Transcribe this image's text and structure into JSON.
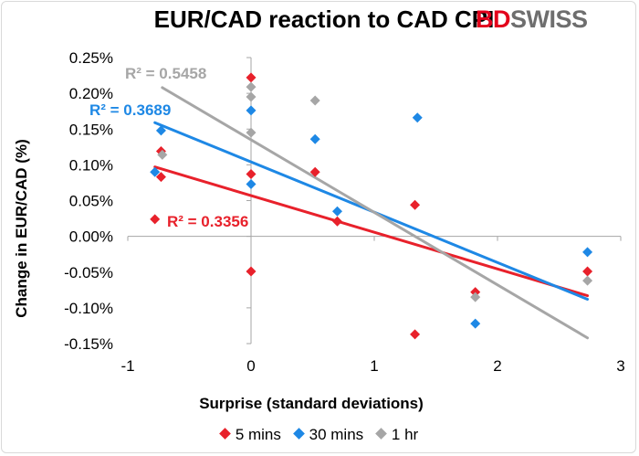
{
  "chart_data": {
    "type": "scatter",
    "title": "EUR/CAD reaction to CAD CPI",
    "xlabel": "Surprise (standard deviations)",
    "ylabel": "Change in EUR/CAD (%)",
    "xlim": [
      -1,
      3
    ],
    "ylim": [
      -0.0015,
      0.0025
    ],
    "xticks": [
      -1,
      0,
      1,
      2,
      3
    ],
    "xtick_labels": [
      "-1",
      "0",
      "1",
      "2",
      "3"
    ],
    "yticks": [
      0.0025,
      0.002,
      0.0015,
      0.001,
      0.0005,
      0,
      -0.0005,
      -0.001,
      -0.0015
    ],
    "ytick_labels": [
      "0.25%",
      "0.20%",
      "0.15%",
      "0.10%",
      "0.05%",
      "0.00%",
      "-0.05%",
      "-0.10%",
      "-0.15%"
    ],
    "series": [
      {
        "name": "5 mins",
        "color": "#e8212b",
        "points": [
          [
            -0.78,
            0.00024
          ],
          [
            -0.73,
            0.00119
          ],
          [
            -0.73,
            0.00083
          ],
          [
            0,
            0.00222
          ],
          [
            0,
            0.00087
          ],
          [
            0,
            -0.00049
          ],
          [
            0.52,
            0.0009
          ],
          [
            0.7,
            0.00021
          ],
          [
            1.33,
            0.00044
          ],
          [
            1.33,
            -0.00137
          ],
          [
            1.82,
            -0.00078
          ],
          [
            2.73,
            -0.00049
          ]
        ],
        "trendline": {
          "x": [
            -0.78,
            2.73
          ],
          "y": [
            0.00097,
            -0.00083
          ]
        },
        "r2_label": "R² = 0.3356"
      },
      {
        "name": "30 mins",
        "color": "#1e88e5",
        "points": [
          [
            -0.78,
            0.0009
          ],
          [
            -0.73,
            0.00148
          ],
          [
            0,
            0.00176
          ],
          [
            0,
            0.00073
          ],
          [
            0.52,
            0.00136
          ],
          [
            0.7,
            0.00035
          ],
          [
            1.35,
            0.00166
          ],
          [
            1.82,
            -0.00122
          ],
          [
            2.73,
            -0.00022
          ]
        ],
        "trendline": {
          "x": [
            -0.78,
            2.73
          ],
          "y": [
            0.00159,
            -0.00088
          ]
        },
        "r2_label": "R² = 0.3689"
      },
      {
        "name": "1 hr",
        "color": "#a6a6a6",
        "points": [
          [
            -0.72,
            0.00114
          ],
          [
            0,
            0.00209
          ],
          [
            0,
            0.00195
          ],
          [
            0,
            0.00145
          ],
          [
            0.52,
            0.0019
          ],
          [
            1.82,
            -0.00085
          ],
          [
            2.73,
            -0.00062
          ]
        ],
        "trendline": {
          "x": [
            -0.72,
            2.73
          ],
          "y": [
            0.00208,
            -0.00142
          ]
        },
        "r2_label": "R² = 0.5458"
      }
    ]
  },
  "logo": {
    "part1": "BD",
    "part2": "SWISS"
  }
}
